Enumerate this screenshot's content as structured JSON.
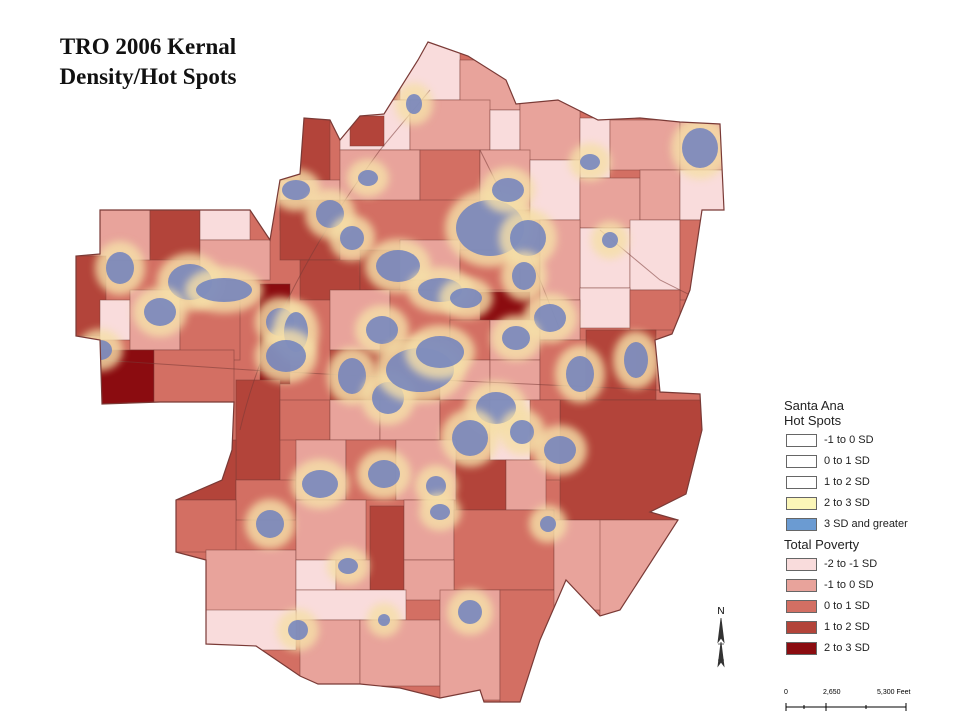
{
  "title": {
    "line1": "TRO 2006 Kernal",
    "line2": "Density/Hot Spots"
  },
  "legend": {
    "hotspots_heading_1": "Santa Ana",
    "hotspots_heading_2": "Hot Spots",
    "hotspots": [
      {
        "label": "-1 to 0 SD",
        "color": "#ffffff"
      },
      {
        "label": "0 to 1 SD",
        "color": "#ffffff"
      },
      {
        "label": "1 to 2 SD",
        "color": "#ffffff"
      },
      {
        "label": "2 to 3 SD",
        "color": "#fbf6b8"
      },
      {
        "label": "3 SD and greater",
        "color": "#6b9bd2"
      }
    ],
    "poverty_heading": "Total Poverty",
    "poverty": [
      {
        "label": "-2 to -1 SD",
        "color": "#f9dcdc"
      },
      {
        "label": "-1 to 0 SD",
        "color": "#e8a39b"
      },
      {
        "label": "0 to 1 SD",
        "color": "#d36f63"
      },
      {
        "label": "1 to 2 SD",
        "color": "#b3443a"
      },
      {
        "label": "2 to 3 SD",
        "color": "#8b0c10"
      }
    ]
  },
  "north_arrow": {
    "label": "N"
  },
  "scale_bar": {
    "ticks": [
      "0",
      "2,650",
      "5,300 Feet"
    ]
  },
  "colors": {
    "boundary": "#7a3a36",
    "hotspot_core": "#6b7fc0",
    "hotspot_halo": "#f5dfa8"
  }
}
